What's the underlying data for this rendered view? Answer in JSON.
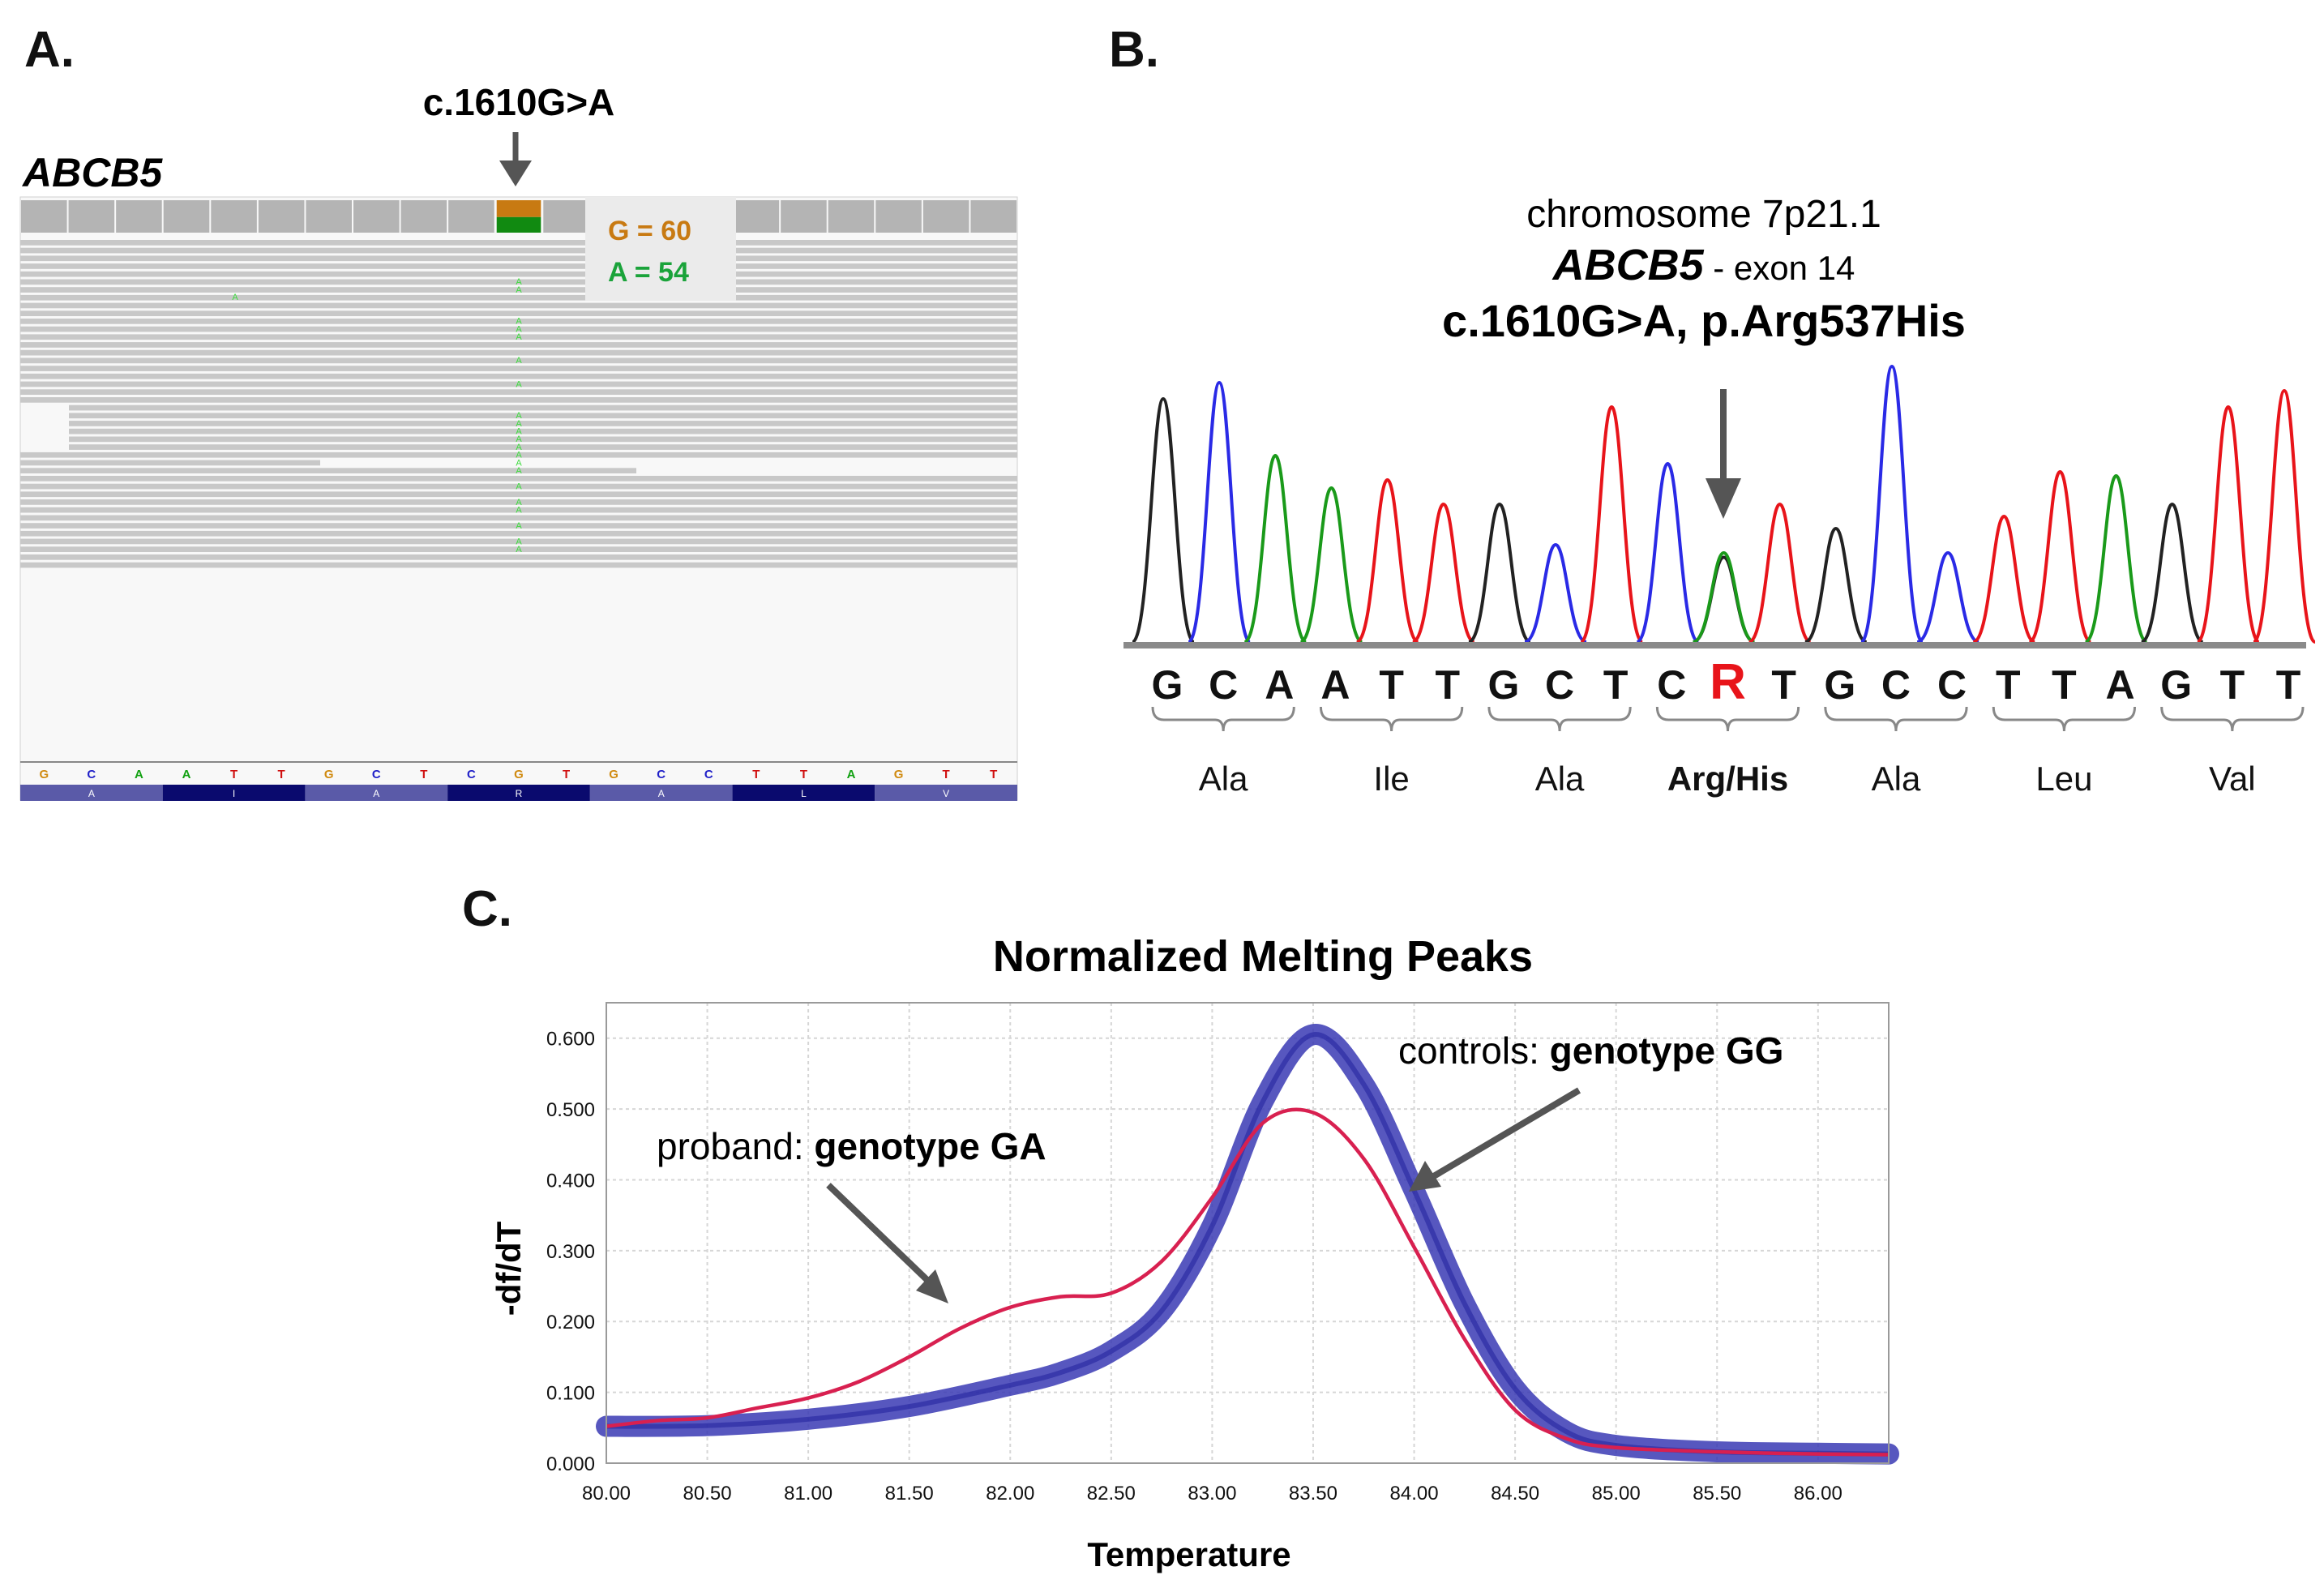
{
  "panels": {
    "a": {
      "letter": "A.",
      "gene": "ABCB5",
      "variant": "c.1610G>A",
      "counts": {
        "g_label": "G = 60",
        "a_label": "A = 54",
        "g_color": "#c87a12",
        "a_color": "#1aa33a"
      },
      "reference_bases": [
        "G",
        "C",
        "A",
        "A",
        "T",
        "T",
        "G",
        "C",
        "T",
        "C",
        "G",
        "T",
        "G",
        "C",
        "C",
        "T",
        "T",
        "A",
        "G",
        "T",
        "T"
      ],
      "amino_acids": [
        "A",
        "I",
        "A",
        "R",
        "A",
        "L",
        "V"
      ],
      "alt_base": "A",
      "read_colors": {
        "read": "#c8c8c8",
        "coverage": "#b4b4b4",
        "alt_base": "#3ddc3d",
        "aa_dark": "#0a0a6e",
        "aa_light": "#5a5aa8"
      }
    },
    "b": {
      "letter": "B.",
      "location": "chromosome 7p21.1",
      "gene": "ABCB5",
      "exon": " - exon 14",
      "variant": "c.1610G>A, p.Arg537His",
      "sequence": [
        "G",
        "C",
        "A",
        "A",
        "T",
        "T",
        "G",
        "C",
        "T",
        "C",
        "R",
        "T",
        "G",
        "C",
        "C",
        "T",
        "T",
        "A",
        "G",
        "T",
        "T"
      ],
      "mutant_index": 10,
      "mutant_color": "#e8141a",
      "codons": [
        "Ala",
        "Ile",
        "Ala",
        "Arg/His",
        "Ala",
        "Leu",
        "Val"
      ],
      "trace_colors": {
        "G": "#222222",
        "C": "#2a2ae6",
        "A": "#1a9a1a",
        "T": "#e8141a"
      }
    },
    "c": {
      "letter": "C.",
      "annotation_proband_prefix": "proband: ",
      "annotation_proband_bold": "genotype GA",
      "annotation_controls_prefix": "controls: ",
      "annotation_controls_bold": "genotype GG"
    }
  },
  "chart_data": {
    "type": "line",
    "title": "Normalized Melting Peaks",
    "xlabel": "Temperature",
    "ylabel": "-df/dT",
    "xlim": [
      80.0,
      86.35
    ],
    "ylim": [
      0.0,
      0.65
    ],
    "x_ticks": [
      "80.00",
      "80.50",
      "81.00",
      "81.50",
      "82.00",
      "82.50",
      "83.00",
      "83.50",
      "84.00",
      "84.50",
      "85.00",
      "85.50",
      "86.00"
    ],
    "y_ticks": [
      "0.000",
      "0.100",
      "0.200",
      "0.300",
      "0.400",
      "0.500",
      "0.600"
    ],
    "grid": true,
    "series": [
      {
        "color": "#3a3ab4",
        "x": [
          80.0,
          80.5,
          81.0,
          81.5,
          82.0,
          82.25,
          82.5,
          82.75,
          83.0,
          83.25,
          83.5,
          83.75,
          84.0,
          84.25,
          84.5,
          84.75,
          85.0,
          85.5,
          86.0,
          86.35
        ],
        "y": [
          0.052,
          0.053,
          0.062,
          0.08,
          0.11,
          0.128,
          0.158,
          0.215,
          0.335,
          0.51,
          0.605,
          0.535,
          0.385,
          0.225,
          0.105,
          0.045,
          0.025,
          0.016,
          0.014,
          0.013
        ]
      },
      {
        "color": "#d82050",
        "x": [
          80.0,
          80.25,
          80.5,
          80.75,
          81.0,
          81.25,
          81.5,
          81.75,
          82.0,
          82.25,
          82.5,
          82.75,
          83.0,
          83.25,
          83.5,
          83.75,
          84.0,
          84.25,
          84.5,
          84.75,
          85.0,
          85.5,
          86.0,
          86.35
        ],
        "y": [
          0.052,
          0.06,
          0.064,
          0.078,
          0.092,
          0.115,
          0.15,
          0.19,
          0.22,
          0.235,
          0.24,
          0.285,
          0.375,
          0.48,
          0.495,
          0.43,
          0.305,
          0.175,
          0.075,
          0.035,
          0.022,
          0.016,
          0.013,
          0.012
        ]
      }
    ]
  }
}
